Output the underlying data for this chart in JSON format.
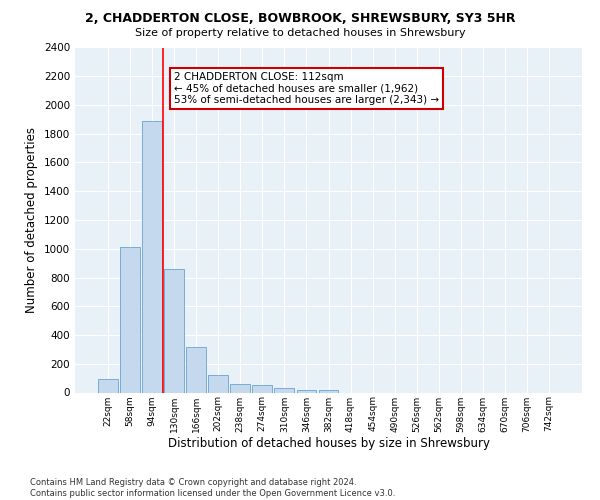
{
  "title": "2, CHADDERTON CLOSE, BOWBROOK, SHREWSBURY, SY3 5HR",
  "subtitle": "Size of property relative to detached houses in Shrewsbury",
  "xlabel": "Distribution of detached houses by size in Shrewsbury",
  "ylabel": "Number of detached properties",
  "bar_color": "#c5d9ee",
  "bar_edge_color": "#7aabd4",
  "background_color": "#e8f0f8",
  "grid_color": "#ffffff",
  "categories": [
    "22sqm",
    "58sqm",
    "94sqm",
    "130sqm",
    "166sqm",
    "202sqm",
    "238sqm",
    "274sqm",
    "310sqm",
    "346sqm",
    "382sqm",
    "418sqm",
    "454sqm",
    "490sqm",
    "526sqm",
    "562sqm",
    "598sqm",
    "634sqm",
    "670sqm",
    "706sqm",
    "742sqm"
  ],
  "values": [
    95,
    1010,
    1890,
    860,
    315,
    120,
    58,
    50,
    30,
    18,
    20,
    0,
    0,
    0,
    0,
    0,
    0,
    0,
    0,
    0,
    0
  ],
  "ylim": [
    0,
    2400
  ],
  "yticks": [
    0,
    200,
    400,
    600,
    800,
    1000,
    1200,
    1400,
    1600,
    1800,
    2000,
    2200,
    2400
  ],
  "vline_x": 2.5,
  "annotation_title": "2 CHADDERTON CLOSE: 112sqm",
  "annotation_line1": "← 45% of detached houses are smaller (1,962)",
  "annotation_line2": "53% of semi-detached houses are larger (2,343) →",
  "annotation_box_color": "#ffffff",
  "annotation_box_edge_color": "#cc0000",
  "footer_line1": "Contains HM Land Registry data © Crown copyright and database right 2024.",
  "footer_line2": "Contains public sector information licensed under the Open Government Licence v3.0."
}
